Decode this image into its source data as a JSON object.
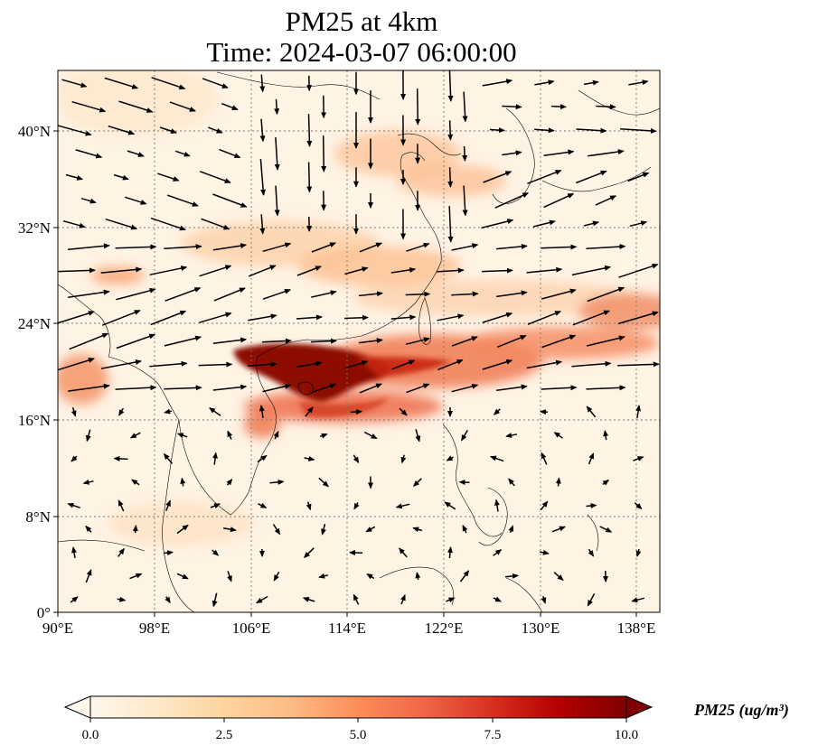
{
  "title": {
    "line1": "PM25 at 4km",
    "line2": "Time: 2024-03-07 06:00:00"
  },
  "map": {
    "lon_range": [
      90,
      140
    ],
    "lat_range": [
      0,
      44.5
    ],
    "lon_ticks": [
      "90°E",
      "98°E",
      "106°E",
      "114°E",
      "122°E",
      "130°E",
      "138°E"
    ],
    "lat_ticks": [
      "0°",
      "8°N",
      "16°N",
      "24°N",
      "32°N",
      "40°N"
    ],
    "grid": "dotted",
    "plume_color_high": "#7f0000",
    "plume_color_mid": "#d7301f",
    "plume_color_low": "#fdbb84",
    "background_color": "#fff5eb"
  },
  "colorbar": {
    "title": "PM25 (ug/m³)",
    "ticks": [
      "0.0",
      "2.5",
      "5.0",
      "7.5",
      "10.0"
    ],
    "range": [
      0,
      10
    ],
    "extend": "both",
    "colormap": [
      "#fff7ec",
      "#fee8c8",
      "#fdd49e",
      "#fdbb84",
      "#fc8d59",
      "#ef6548",
      "#d7301f",
      "#b30000",
      "#7f0000"
    ]
  }
}
